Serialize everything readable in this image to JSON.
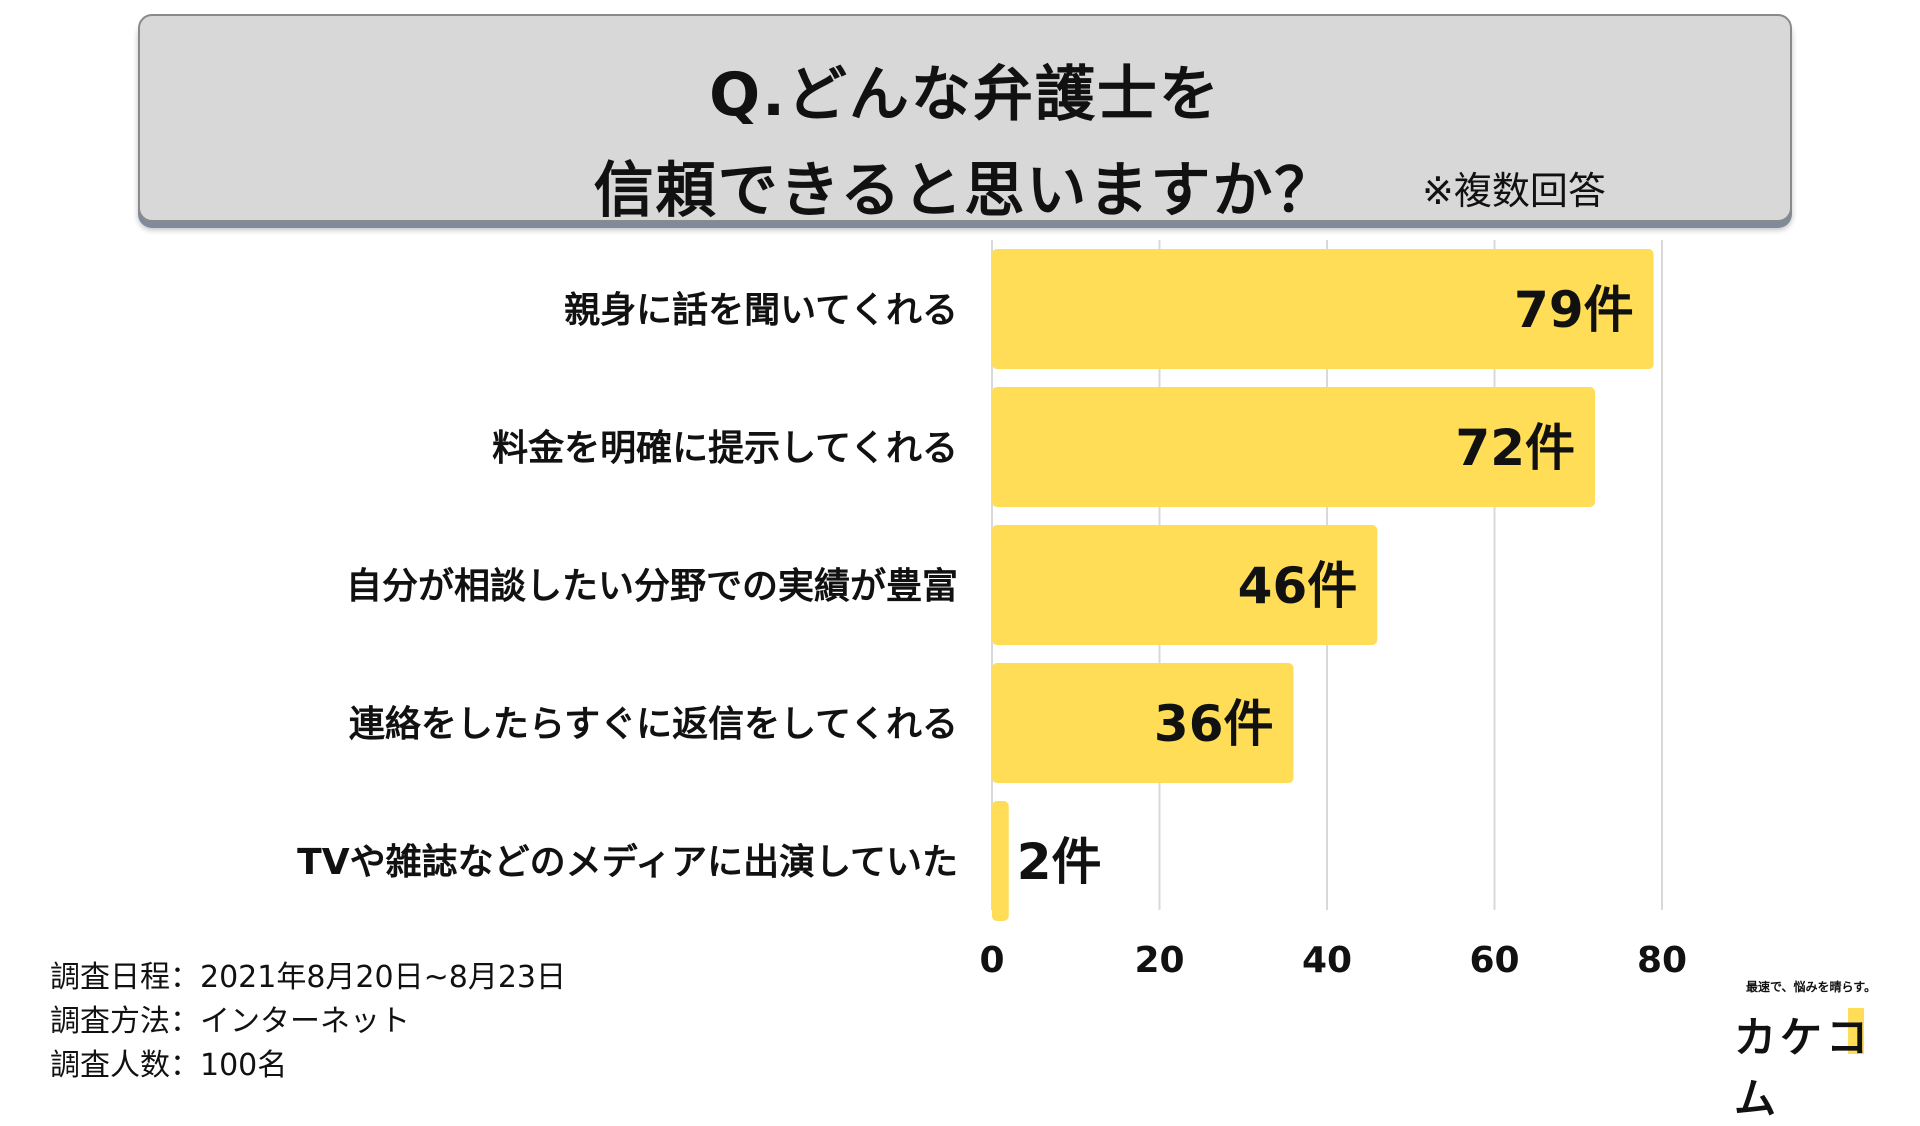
{
  "title": {
    "line1": "Q.どんな弁護士を",
    "line2": "信頼できると思いますか？",
    "note": "※複数回答"
  },
  "chart_data": {
    "type": "bar",
    "orientation": "horizontal",
    "categories": [
      "親身に話を聞いてくれる",
      "料金を明確に提示してくれる",
      "自分が相談したい分野での実績が豊富",
      "連絡をしたらすぐに返信をしてくれる",
      "TVや雑誌などのメディアに出演していた"
    ],
    "values": [
      79,
      72,
      46,
      36,
      2
    ],
    "value_labels": [
      "79件",
      "72件",
      "46件",
      "36件",
      "2件"
    ],
    "xticks": [
      "0",
      "20",
      "40",
      "60",
      "80"
    ],
    "xlim": [
      0,
      80
    ],
    "grid": true,
    "bar_color": "#ffdd57"
  },
  "footer": {
    "line1": "調査日程：2021年8月20日~8月23日",
    "line2": "調査方法：インターネット",
    "line3": "調査人数：100名"
  },
  "logo": {
    "tagline": "最速で、悩みを晴らす。",
    "name": "カケコム"
  }
}
